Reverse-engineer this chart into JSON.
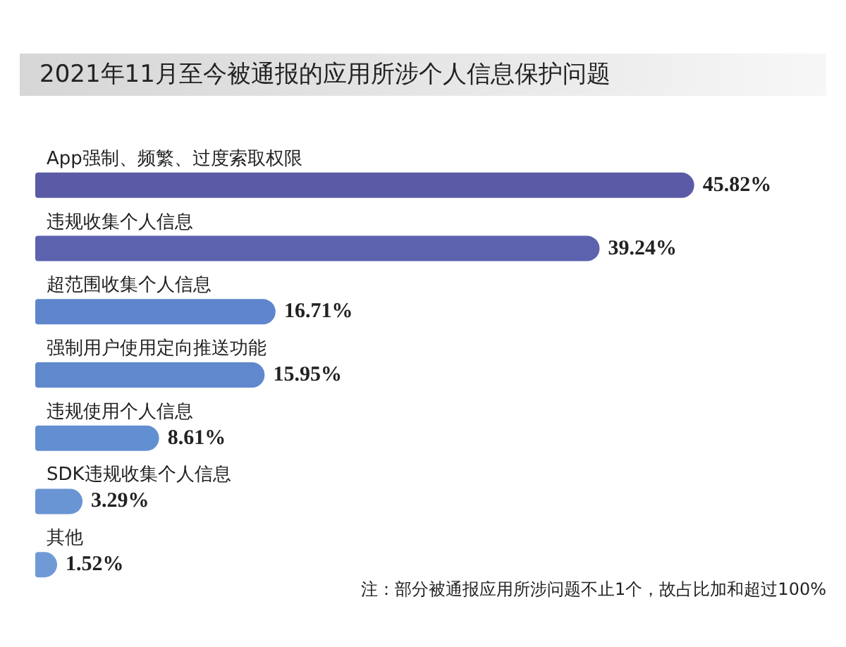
{
  "chart_data": {
    "type": "bar",
    "orientation": "horizontal",
    "title": "2021年11月至今被通报的应用所涉个人信息保护问题",
    "categories": [
      "App强制、频繁、过度索取权限",
      "违规收集个人信息",
      "超范围收集个人信息",
      "强制用户使用定向推送功能",
      "违规使用个人信息",
      "SDK违规收集个人信息",
      "其他"
    ],
    "values": [
      45.82,
      39.24,
      16.71,
      15.95,
      8.61,
      3.29,
      1.52
    ],
    "value_labels": [
      "45.82%",
      "39.24%",
      "16.71%",
      "15.95%",
      "8.61%",
      "3.29%",
      "1.52%"
    ],
    "colors": [
      "#5b5aa6",
      "#5c62ae",
      "#5f86cc",
      "#6088cc",
      "#628fd2",
      "#6a95d4",
      "#6f9ad6"
    ],
    "annotations": [
      "注：部分被通报应用所涉问题不止1个，故占比加和超过100%"
    ]
  }
}
